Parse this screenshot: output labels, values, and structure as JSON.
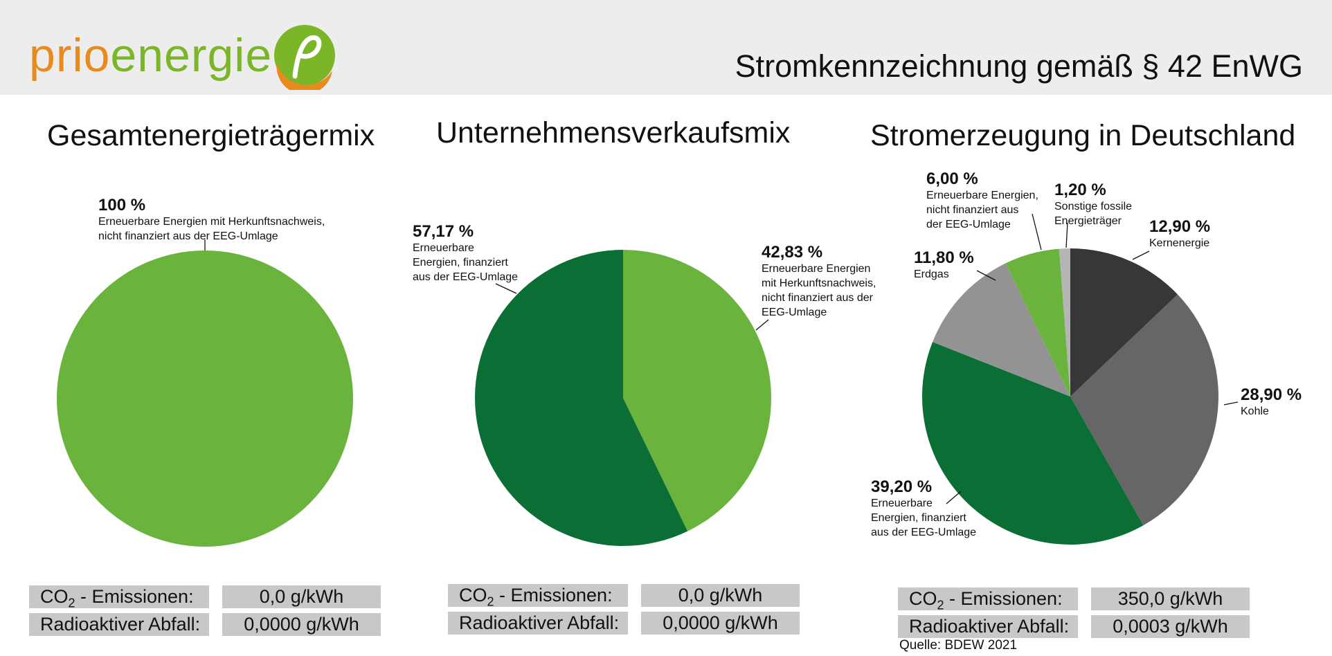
{
  "header": {
    "logo_prio": "prio",
    "logo_energie": "energie",
    "title": "Stromkennzeichnung gemäß § 42 EnWG"
  },
  "colors": {
    "light_green": "#6ab43e",
    "dark_green": "#0b6e35",
    "charcoal": "#373737",
    "dark_gray": "#666666",
    "mid_gray": "#939393",
    "light_gray": "#b5b5b5",
    "logo_orange": "#e88a1d",
    "logo_green": "#7bb528",
    "table_bg": "#c8c8c8",
    "header_bg": "#ededed"
  },
  "chart_data": [
    {
      "type": "pie",
      "title": "Gesamtenergieträgermix",
      "slices": [
        {
          "pct_label": "100 %",
          "label": "Erneuerbare Energien mit Herkunftsnachweis,\nnicht finanziert aus der EEG-Umlage",
          "value": 100,
          "color": "#6ab43e"
        }
      ]
    },
    {
      "type": "pie",
      "title": "Unternehmensverkaufsmix",
      "slices": [
        {
          "pct_label": "42,83 %",
          "label": "Erneuerbare Energien\nmit Herkunftsnachweis,\nnicht finanziert aus der\nEEG-Umlage",
          "value": 42.83,
          "color": "#6ab43e"
        },
        {
          "pct_label": "57,17 %",
          "label": "Erneuerbare\nEnergien, finanziert\naus der EEG-Umlage",
          "value": 57.17,
          "color": "#0b6e35"
        }
      ]
    },
    {
      "type": "pie",
      "title": "Stromerzeugung in Deutschland",
      "slices": [
        {
          "pct_label": "12,90 %",
          "label": "Kernenergie",
          "value": 12.9,
          "color": "#373737"
        },
        {
          "pct_label": "28,90 %",
          "label": "Kohle",
          "value": 28.9,
          "color": "#666666"
        },
        {
          "pct_label": "39,20 %",
          "label": "Erneuerbare\nEnergien, finanziert\naus der EEG-Umlage",
          "value": 39.2,
          "color": "#0b6e35"
        },
        {
          "pct_label": "11,80 %",
          "label": "Erdgas",
          "value": 11.8,
          "color": "#939393"
        },
        {
          "pct_label": "6,00 %",
          "label": "Erneuerbare Energien,\nnicht finanziert aus\nder EEG-Umlage",
          "value": 6.0,
          "color": "#6ab43e"
        },
        {
          "pct_label": "1,20 %",
          "label": "Sonstige fossile\nEnergieträger",
          "value": 1.2,
          "color": "#b5b5b5"
        }
      ]
    }
  ],
  "tables": [
    {
      "co2_label_pre": "CO",
      "co2_label_sub": "2",
      "co2_label_post": " - Emissionen:",
      "co2_value": "0,0 g/kWh",
      "waste_label": "Radioaktiver Abfall:",
      "waste_value": "0,0000 g/kWh"
    },
    {
      "co2_label_pre": "CO",
      "co2_label_sub": "2",
      "co2_label_post": " - Emissionen:",
      "co2_value": "0,0 g/kWh",
      "waste_label": "Radioaktiver Abfall:",
      "waste_value": "0,0000 g/kWh"
    },
    {
      "co2_label_pre": "CO",
      "co2_label_sub": "2",
      "co2_label_post": " - Emissionen:",
      "co2_value": "350,0 g/kWh",
      "waste_label": "Radioaktiver Abfall:",
      "waste_value": "0,0003 g/kWh"
    }
  ],
  "source": "Quelle: BDEW 2021"
}
